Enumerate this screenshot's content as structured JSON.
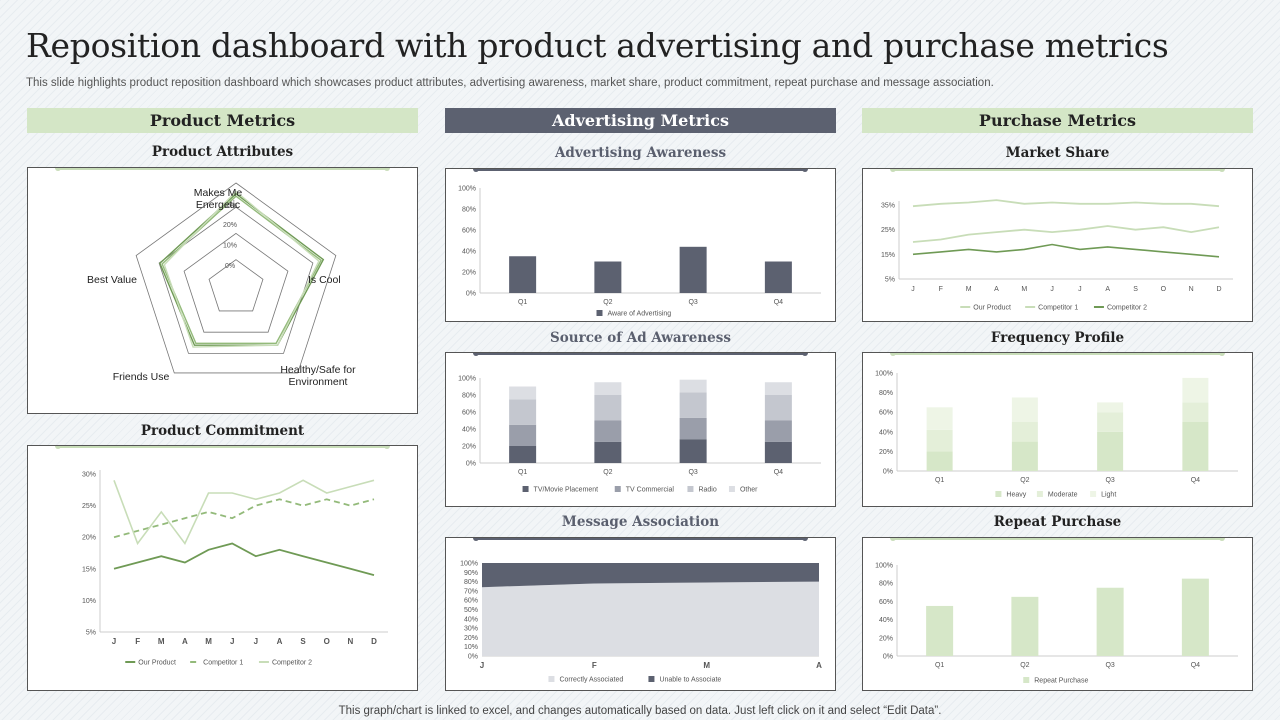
{
  "title": "Reposition dashboard with product advertising and purchase metrics",
  "subtitle": "This slide highlights product reposition dashboard which showcases product attributes, advertising awareness, market share, product commitment, repeat purchase and message association.",
  "footer": "This graph/chart is linked to excel, and changes automatically based on data. Just left click on it and select “Edit Data”.",
  "columns": {
    "product": "Product Metrics",
    "advertising": "Advertising Metrics",
    "purchase": "Purchase Metrics"
  },
  "colors": {
    "green_dark": "#6f9a55",
    "green_mid": "#93ba7a",
    "green_light": "#c8ddb8",
    "slate": "#5c6170",
    "slate_mid": "#9a9eaa",
    "slate_light": "#c4c7cf",
    "slate_pale": "#dcdee3"
  },
  "chart_data": [
    {
      "id": "product_attributes",
      "type": "radar",
      "title": "Product Attributes",
      "axes": [
        "Makes Me\nEnergetic",
        "Is Cool",
        "Healthy/Safe for\nEnvironment",
        "Friends Use",
        "Best Value"
      ],
      "ticks": [
        "0%",
        "10%",
        "20%",
        "30%"
      ],
      "rmax": 30,
      "series": [
        {
          "values": [
            28,
            27,
            18,
            18,
            22
          ]
        },
        {
          "values": [
            27,
            26,
            17,
            17,
            21
          ]
        },
        {
          "values": [
            29,
            25,
            18,
            19,
            20
          ]
        }
      ]
    },
    {
      "id": "product_commitment",
      "type": "line",
      "title": "Product Commitment",
      "categories": [
        "J",
        "F",
        "M",
        "A",
        "M",
        "J",
        "J",
        "A",
        "S",
        "O",
        "N",
        "D"
      ],
      "yticks": [
        "5%",
        "10%",
        "15%",
        "20%",
        "25%",
        "30%"
      ],
      "ylim": [
        5,
        30
      ],
      "series": [
        {
          "name": "Our Product",
          "values": [
            15,
            16,
            17,
            16,
            18,
            19,
            17,
            18,
            17,
            16,
            15,
            14
          ]
        },
        {
          "name": "Competitor 1",
          "values": [
            20,
            21,
            22,
            23,
            24,
            23,
            25,
            26,
            25,
            26,
            25,
            26
          ]
        },
        {
          "name": "Competitor 2",
          "values": [
            29,
            19,
            24,
            19,
            27,
            27,
            26,
            27,
            29,
            27,
            28,
            29
          ]
        }
      ]
    },
    {
      "id": "advertising_awareness",
      "type": "bar",
      "title": "Advertising Awareness",
      "categories": [
        "Q1",
        "Q2",
        "Q3",
        "Q4"
      ],
      "yticks": [
        "0%",
        "20%",
        "40%",
        "60%",
        "80%",
        "100%"
      ],
      "ylim": [
        0,
        100
      ],
      "series": [
        {
          "name": "Aware of Advertising",
          "values": [
            35,
            30,
            44,
            30
          ]
        }
      ]
    },
    {
      "id": "source_ad_awareness",
      "type": "bar",
      "title": "Source of Ad Awareness",
      "stacked": true,
      "categories": [
        "Q1",
        "Q2",
        "Q3",
        "Q4"
      ],
      "yticks": [
        "0%",
        "20%",
        "40%",
        "60%",
        "80%",
        "100%"
      ],
      "ylim": [
        0,
        100
      ],
      "series": [
        {
          "name": "TV/Movie Placement",
          "values": [
            20,
            25,
            28,
            25
          ]
        },
        {
          "name": "TV Commercial",
          "values": [
            25,
            25,
            25,
            25
          ]
        },
        {
          "name": "Radio",
          "values": [
            30,
            30,
            30,
            30
          ]
        },
        {
          "name": "Other",
          "values": [
            15,
            15,
            15,
            15
          ]
        }
      ]
    },
    {
      "id": "message_association",
      "type": "area",
      "title": "Message Association",
      "stacked": true,
      "categories": [
        "J",
        "F",
        "M",
        "A"
      ],
      "yticks": [
        "0%",
        "10%",
        "20%",
        "30%",
        "40%",
        "50%",
        "60%",
        "70%",
        "80%",
        "90%",
        "100%"
      ],
      "ylim": [
        0,
        100
      ],
      "series": [
        {
          "name": "Correctly Associated",
          "values": [
            74,
            78,
            79,
            80
          ]
        },
        {
          "name": "Unable to Associate",
          "values": [
            26,
            22,
            21,
            20
          ]
        }
      ]
    },
    {
      "id": "market_share",
      "type": "line",
      "title": "Market Share",
      "categories": [
        "J",
        "F",
        "M",
        "A",
        "M",
        "J",
        "J",
        "A",
        "S",
        "O",
        "N",
        "D"
      ],
      "yticks": [
        "5%",
        "15%",
        "25%",
        "35%"
      ],
      "ylim": [
        5,
        40
      ],
      "series": [
        {
          "name": "Our Product",
          "values": [
            34.5,
            35.5,
            36,
            37,
            35.5,
            36,
            35.5,
            35.5,
            36,
            35.5,
            35.5,
            34.5
          ]
        },
        {
          "name": "Competitor 1",
          "values": [
            20,
            21,
            23,
            24,
            25,
            24,
            25,
            26.5,
            25,
            26,
            24,
            26
          ]
        },
        {
          "name": "Competitor 2",
          "values": [
            15,
            16,
            17,
            16,
            17,
            19,
            17,
            18,
            17,
            16,
            15,
            14
          ]
        }
      ]
    },
    {
      "id": "frequency_profile",
      "type": "bar",
      "title": "Frequency Profile",
      "stacked": true,
      "categories": [
        "Q1",
        "Q2",
        "Q3",
        "Q4"
      ],
      "yticks": [
        "0%",
        "20%",
        "40%",
        "60%",
        "80%",
        "100%"
      ],
      "ylim": [
        0,
        100
      ],
      "series": [
        {
          "name": "Heavy",
          "values": [
            20,
            30,
            40,
            50
          ]
        },
        {
          "name": "Moderate",
          "values": [
            22,
            20,
            20,
            20
          ]
        },
        {
          "name": "Light",
          "values": [
            23,
            25,
            10,
            25
          ]
        }
      ]
    },
    {
      "id": "repeat_purchase",
      "type": "bar",
      "title": "Repeat Purchase",
      "categories": [
        "Q1",
        "Q2",
        "Q3",
        "Q4"
      ],
      "yticks": [
        "0%",
        "20%",
        "40%",
        "60%",
        "80%",
        "100%"
      ],
      "ylim": [
        0,
        100
      ],
      "series": [
        {
          "name": "Repeat Purchase",
          "values": [
            55,
            65,
            75,
            85
          ]
        }
      ]
    }
  ]
}
